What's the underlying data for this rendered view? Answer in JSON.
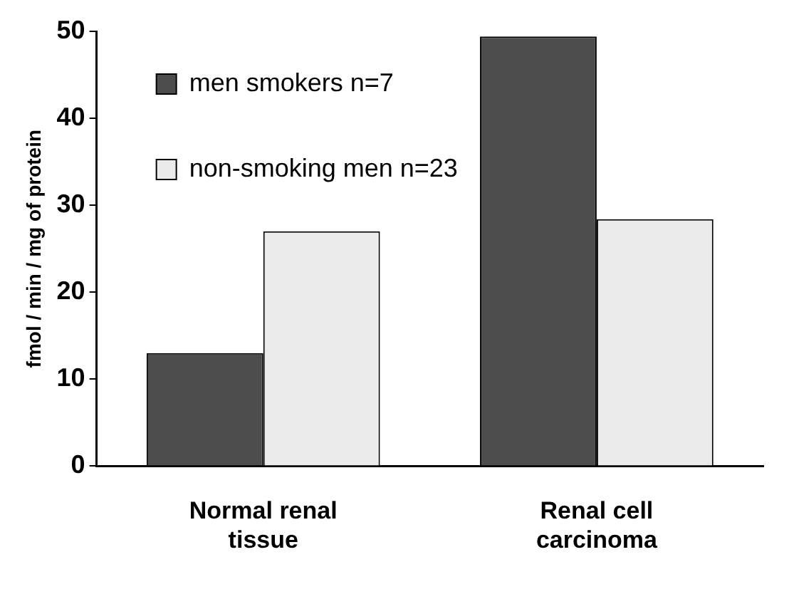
{
  "chart_data": {
    "type": "bar",
    "ylabel": "fmol / min / mg of protein",
    "categories": [
      "Normal renal tissue",
      "Renal cell carcinoma"
    ],
    "series": [
      {
        "name": "men smokers n=7",
        "color": "#4d4d4d",
        "values": [
          13,
          49.4
        ]
      },
      {
        "name": "non-smoking men n=23",
        "color": "#ebebeb",
        "values": [
          27,
          28.4
        ]
      }
    ],
    "ylim": [
      0,
      50
    ],
    "yticks": [
      0,
      10,
      20,
      30,
      40,
      50
    ],
    "grid": false,
    "legend": "top left"
  }
}
